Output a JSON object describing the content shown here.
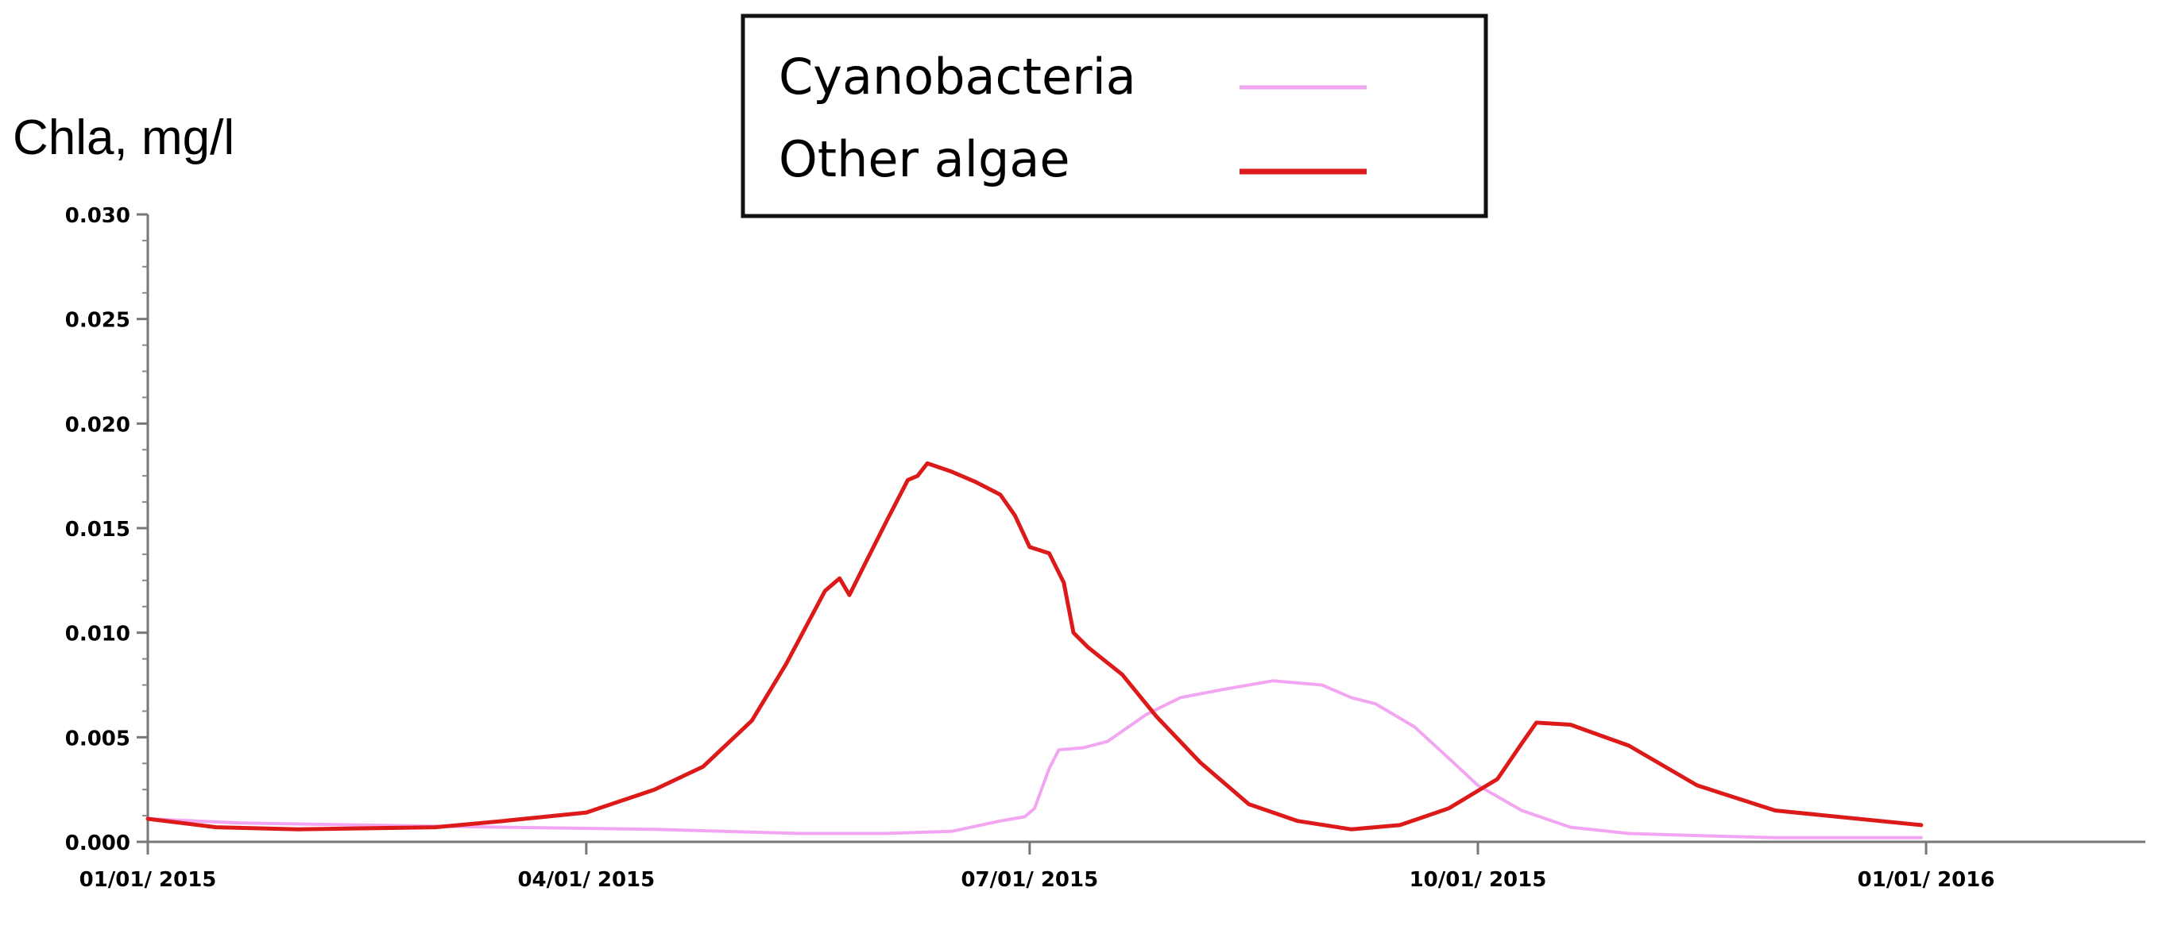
{
  "chart_data": {
    "type": "line",
    "title": "",
    "ylabel": "Chla, mg/l",
    "xlabel": "",
    "x_axis": {
      "type": "date",
      "range": [
        "2015-01-01",
        "2016-02-15"
      ],
      "ticks": [
        {
          "date": "2015-01-01",
          "label": "01/01/ 2015"
        },
        {
          "date": "2015-04-01",
          "label": "04/01/ 2015"
        },
        {
          "date": "2015-07-01",
          "label": "07/01/ 2015"
        },
        {
          "date": "2015-10-01",
          "label": "10/01/ 2015"
        },
        {
          "date": "2016-01-01",
          "label": "01/01/ 2016"
        }
      ]
    },
    "y_axis": {
      "range": [
        0,
        0.03
      ],
      "ticks": [
        {
          "value": 0.0,
          "label": "0.000"
        },
        {
          "value": 0.005,
          "label": "0.005"
        },
        {
          "value": 0.01,
          "label": "0.010"
        },
        {
          "value": 0.015,
          "label": "0.015"
        },
        {
          "value": 0.02,
          "label": "0.020"
        },
        {
          "value": 0.025,
          "label": "0.025"
        },
        {
          "value": 0.03,
          "label": "0.030"
        }
      ]
    },
    "grid": false,
    "legend": {
      "position": "top-center",
      "border": true
    },
    "series": [
      {
        "name": "Cyanobacteria",
        "color": "#f2a6f2",
        "points": [
          [
            "2015-01-01",
            0.0011
          ],
          [
            "2015-01-20",
            0.0009
          ],
          [
            "2015-02-15",
            0.0008
          ],
          [
            "2015-03-15",
            0.0007
          ],
          [
            "2015-04-15",
            0.0006
          ],
          [
            "2015-05-15",
            0.0004
          ],
          [
            "2015-06-01",
            0.0004
          ],
          [
            "2015-06-15",
            0.0005
          ],
          [
            "2015-06-25",
            0.001
          ],
          [
            "2015-06-30",
            0.0012
          ],
          [
            "2015-07-02",
            0.0016
          ],
          [
            "2015-07-05",
            0.0035
          ],
          [
            "2015-07-07",
            0.0044
          ],
          [
            "2015-07-12",
            0.0045
          ],
          [
            "2015-07-17",
            0.0048
          ],
          [
            "2015-07-25",
            0.0061
          ],
          [
            "2015-08-01",
            0.0069
          ],
          [
            "2015-08-10",
            0.0073
          ],
          [
            "2015-08-20",
            0.0077
          ],
          [
            "2015-08-30",
            0.0075
          ],
          [
            "2015-09-05",
            0.0069
          ],
          [
            "2015-09-10",
            0.0066
          ],
          [
            "2015-09-18",
            0.0055
          ],
          [
            "2015-09-25",
            0.004
          ],
          [
            "2015-10-01",
            0.0027
          ],
          [
            "2015-10-10",
            0.0015
          ],
          [
            "2015-10-20",
            0.0007
          ],
          [
            "2015-11-01",
            0.0004
          ],
          [
            "2015-11-15",
            0.0003
          ],
          [
            "2015-12-01",
            0.0002
          ],
          [
            "2015-12-31",
            0.0002
          ]
        ]
      },
      {
        "name": "Other algae",
        "color": "#dd1a1a",
        "points": [
          [
            "2015-01-01",
            0.0011
          ],
          [
            "2015-01-15",
            0.0007
          ],
          [
            "2015-02-01",
            0.0006
          ],
          [
            "2015-03-01",
            0.0007
          ],
          [
            "2015-03-15",
            0.001
          ],
          [
            "2015-04-01",
            0.0014
          ],
          [
            "2015-04-15",
            0.0025
          ],
          [
            "2015-04-25",
            0.0036
          ],
          [
            "2015-05-05",
            0.0058
          ],
          [
            "2015-05-12",
            0.0085
          ],
          [
            "2015-05-20",
            0.012
          ],
          [
            "2015-05-23",
            0.0126
          ],
          [
            "2015-05-25",
            0.0118
          ],
          [
            "2015-05-28",
            0.0132
          ],
          [
            "2015-06-02",
            0.0155
          ],
          [
            "2015-06-06",
            0.0173
          ],
          [
            "2015-06-08",
            0.0175
          ],
          [
            "2015-06-10",
            0.0181
          ],
          [
            "2015-06-15",
            0.0177
          ],
          [
            "2015-06-20",
            0.0172
          ],
          [
            "2015-06-25",
            0.0166
          ],
          [
            "2015-06-28",
            0.0156
          ],
          [
            "2015-07-01",
            0.0141
          ],
          [
            "2015-07-05",
            0.0138
          ],
          [
            "2015-07-08",
            0.0124
          ],
          [
            "2015-07-10",
            0.01
          ],
          [
            "2015-07-13",
            0.0093
          ],
          [
            "2015-07-20",
            0.008
          ],
          [
            "2015-07-27",
            0.006
          ],
          [
            "2015-08-05",
            0.0038
          ],
          [
            "2015-08-15",
            0.0018
          ],
          [
            "2015-08-25",
            0.001
          ],
          [
            "2015-09-05",
            0.0006
          ],
          [
            "2015-09-15",
            0.0008
          ],
          [
            "2015-09-25",
            0.0016
          ],
          [
            "2015-10-05",
            0.003
          ],
          [
            "2015-10-10",
            0.0047
          ],
          [
            "2015-10-13",
            0.0057
          ],
          [
            "2015-10-20",
            0.0056
          ],
          [
            "2015-11-01",
            0.0046
          ],
          [
            "2015-11-15",
            0.0027
          ],
          [
            "2015-12-01",
            0.0015
          ],
          [
            "2015-12-31",
            0.0008
          ]
        ]
      }
    ]
  }
}
